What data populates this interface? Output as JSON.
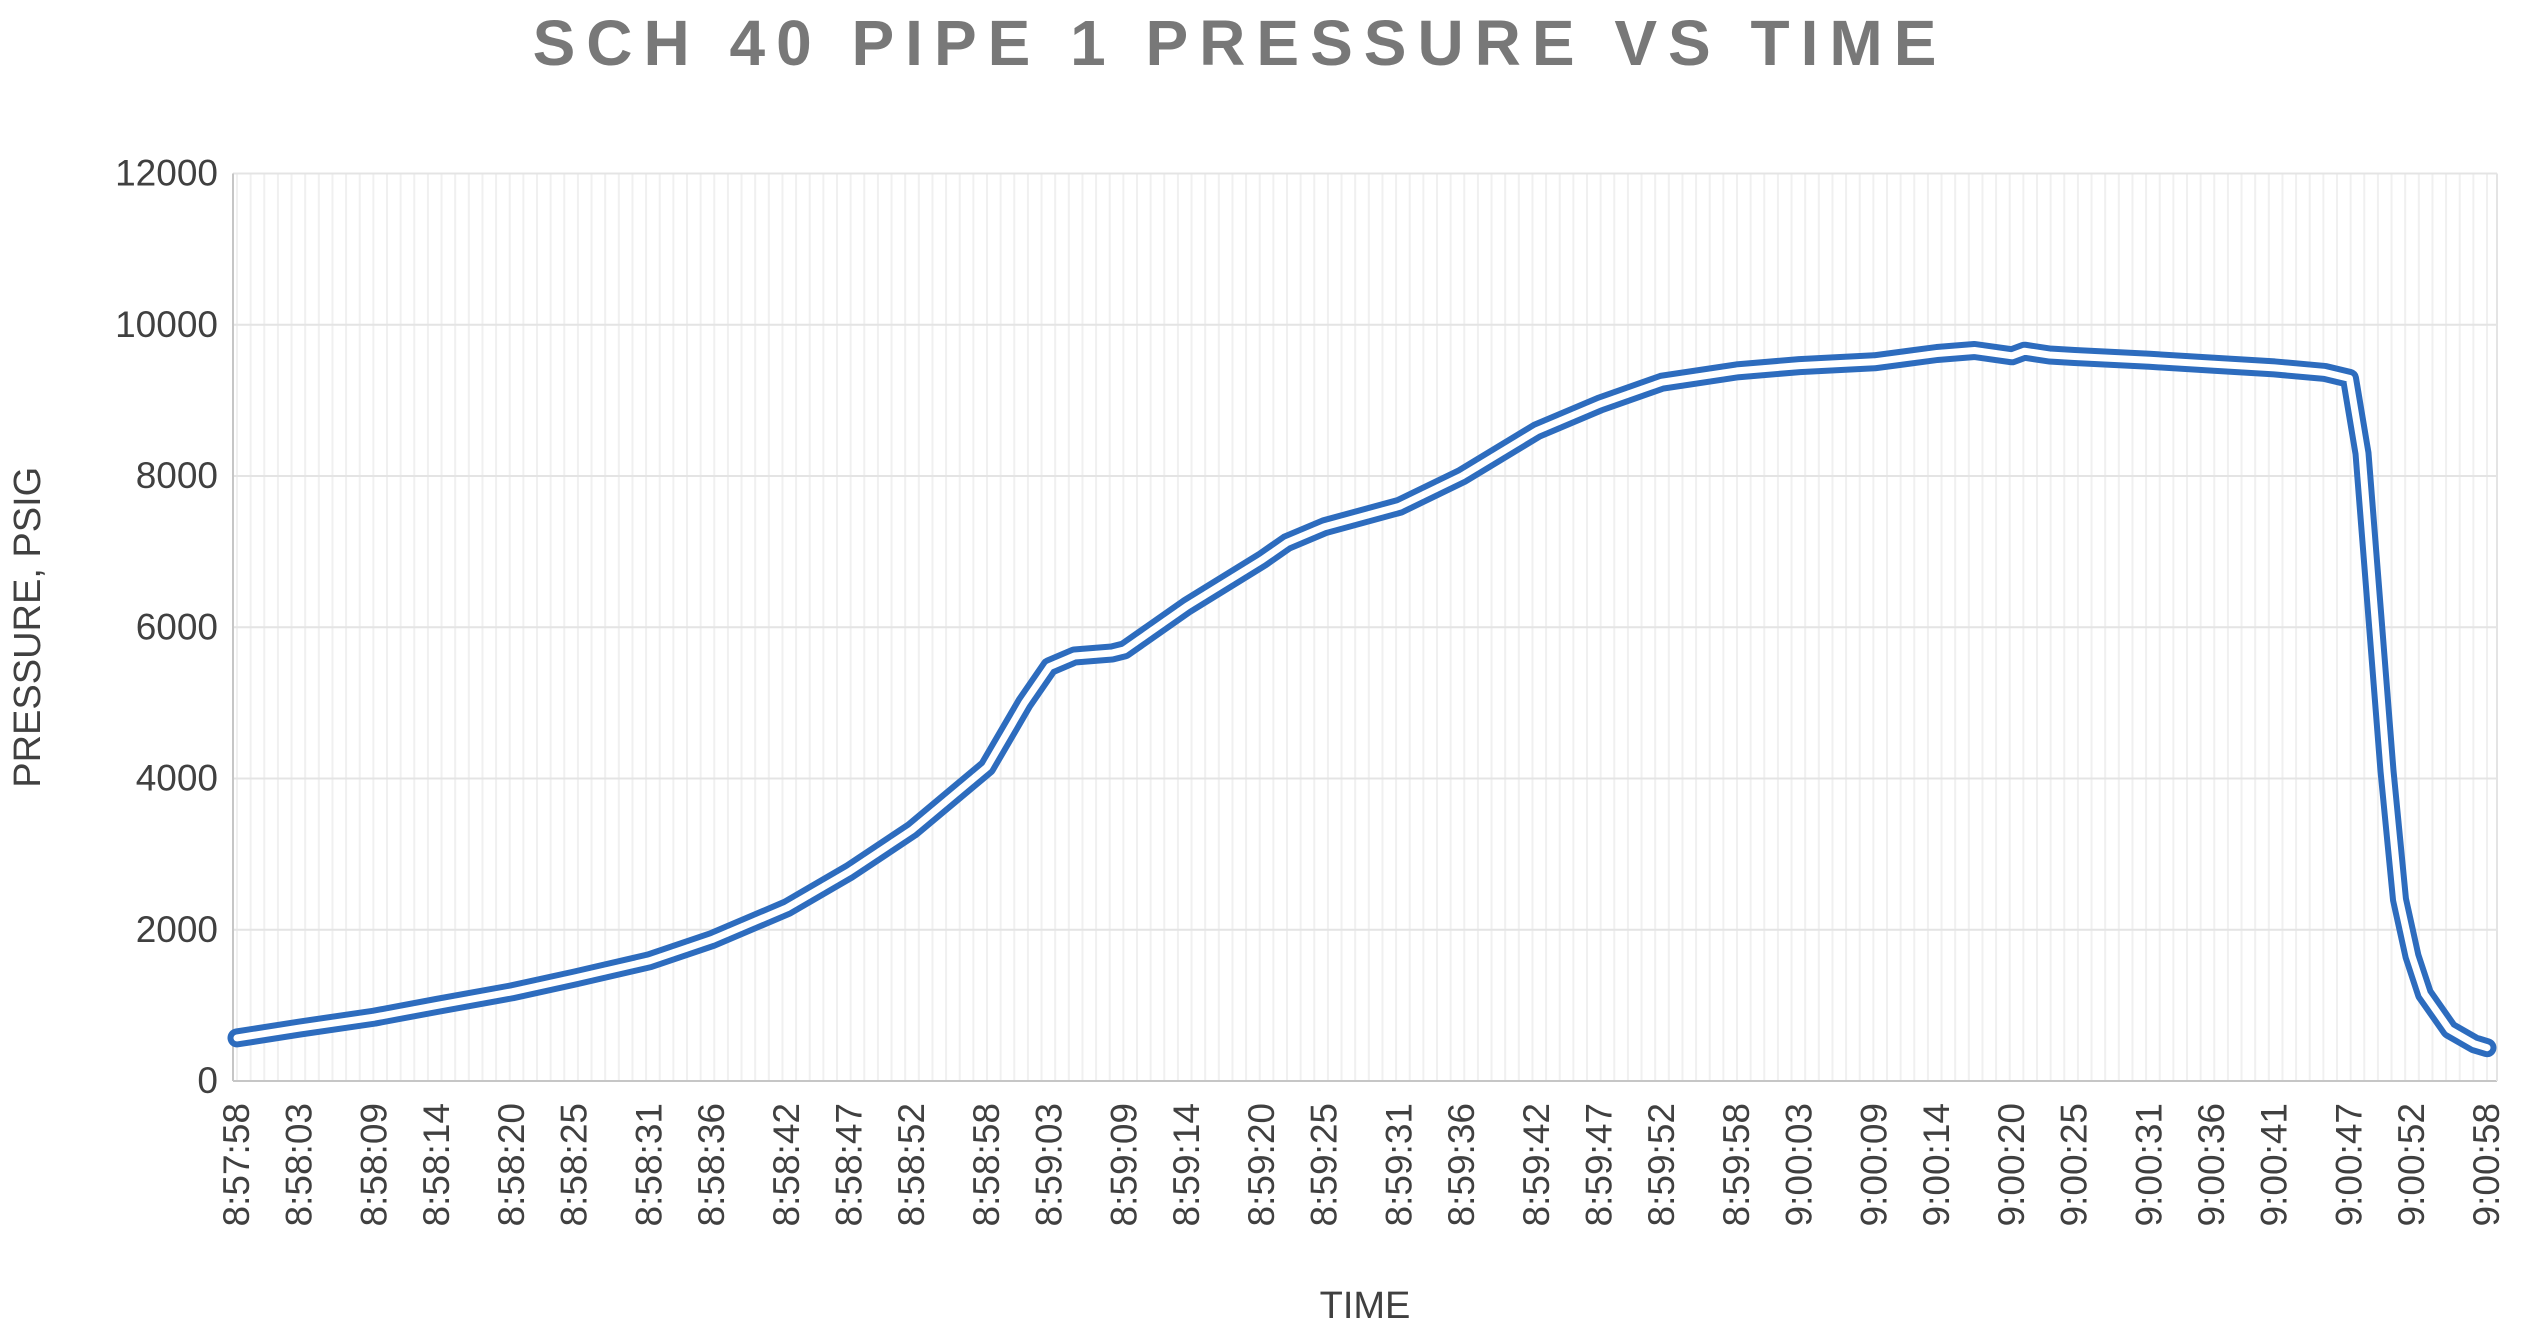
{
  "chart_data": {
    "type": "line",
    "title": "SCH 40 PIPE 1 PRESSURE VS TIME",
    "xlabel": "TIME",
    "ylabel": "PRESSURE, PSIG",
    "ylim": [
      0,
      12000
    ],
    "yticks": [
      0,
      2000,
      4000,
      6000,
      8000,
      10000,
      12000
    ],
    "xticks": [
      "8:57:58",
      "8:58:03",
      "8:58:09",
      "8:58:14",
      "8:58:20",
      "8:58:25",
      "8:58:31",
      "8:58:36",
      "8:58:42",
      "8:58:47",
      "8:58:52",
      "8:58:58",
      "8:59:03",
      "8:59:09",
      "8:59:14",
      "8:59:20",
      "8:59:25",
      "8:59:31",
      "8:59:36",
      "8:59:42",
      "8:59:47",
      "8:59:52",
      "8:59:58",
      "9:00:03",
      "9:00:09",
      "9:00:14",
      "9:00:20",
      "9:00:25",
      "9:00:31",
      "9:00:36",
      "9:00:41",
      "9:00:47",
      "9:00:52",
      "9:00:58"
    ],
    "grid": {
      "horizontal_major": true,
      "vertical_minor": true,
      "minor_per_tick_interval": 5
    },
    "legend": "none",
    "series": [
      {
        "name": "Pipe 1 pressure",
        "style": "double-line",
        "color": "#2d6cbe",
        "points": [
          [
            "8:57:58",
            570
          ],
          [
            "8:58:03",
            700
          ],
          [
            "8:58:09",
            845
          ],
          [
            "8:58:14",
            1000
          ],
          [
            "8:58:20",
            1180
          ],
          [
            "8:58:25",
            1360
          ],
          [
            "8:58:31",
            1590
          ],
          [
            "8:58:36",
            1870
          ],
          [
            "8:58:42",
            2290
          ],
          [
            "8:58:47",
            2770
          ],
          [
            "8:58:52",
            3320
          ],
          [
            "8:58:58",
            4150
          ],
          [
            "8:59:01",
            5000
          ],
          [
            "8:59:03",
            5480
          ],
          [
            "8:59:05",
            5620
          ],
          [
            "8:59:08",
            5660
          ],
          [
            "8:59:09",
            5700
          ],
          [
            "8:59:14",
            6280
          ],
          [
            "8:59:20",
            6890
          ],
          [
            "8:59:22",
            7120
          ],
          [
            "8:59:25",
            7330
          ],
          [
            "8:59:31",
            7600
          ],
          [
            "8:59:36",
            8000
          ],
          [
            "8:59:42",
            8600
          ],
          [
            "8:59:47",
            8950
          ],
          [
            "8:59:52",
            9240
          ],
          [
            "8:59:58",
            9390
          ],
          [
            "9:00:03",
            9460
          ],
          [
            "9:00:09",
            9510
          ],
          [
            "9:00:14",
            9620
          ],
          [
            "9:00:17",
            9660
          ],
          [
            "9:00:20",
            9590
          ],
          [
            "9:00:21",
            9650
          ],
          [
            "9:00:23",
            9600
          ],
          [
            "9:00:25",
            9580
          ],
          [
            "9:00:31",
            9530
          ],
          [
            "9:00:36",
            9480
          ],
          [
            "9:00:41",
            9430
          ],
          [
            "9:00:45",
            9370
          ],
          [
            "9:00:47",
            9290
          ],
          [
            "9:00:48",
            8300
          ],
          [
            "9:00:49",
            6200
          ],
          [
            "9:00:50",
            4100
          ],
          [
            "9:00:51",
            2400
          ],
          [
            "9:00:52",
            1650
          ],
          [
            "9:00:53",
            1150
          ],
          [
            "9:00:55",
            680
          ],
          [
            "9:00:57",
            490
          ],
          [
            "9:00:58",
            440
          ]
        ]
      }
    ],
    "colors": {
      "line": "#2d6cbe",
      "line_inner_gap": "#ffffff",
      "title": "#787878",
      "axis_text": "#404040",
      "axis_line": "#c6c6c6",
      "grid_major": "#e4e4e4",
      "grid_minor": "#f0f0f0",
      "background": "#ffffff"
    }
  }
}
